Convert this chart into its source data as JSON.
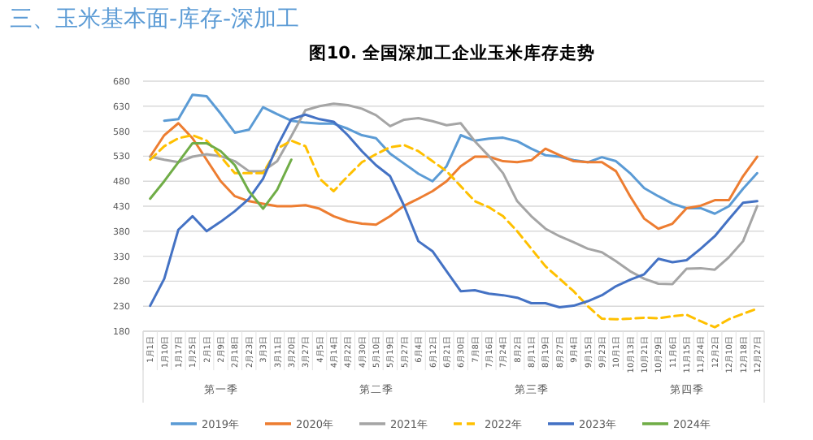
{
  "chart_data": {
    "type": "line",
    "title": "图10. 全国深加工企业玉米库存走势",
    "annotations": [
      "三、玉米基本面-库存-深加工",
      "第一季",
      "第二季",
      "第三季",
      "第四季"
    ],
    "categories": [
      "1月1日",
      "1月10日",
      "1月17日",
      "1月25日",
      "2月1日",
      "2月9日",
      "2月18日",
      "2月23日",
      "3月3日",
      "3月11日",
      "3月20日",
      "3月27日",
      "4月5日",
      "4月14日",
      "4月22日",
      "4月30日",
      "5月10日",
      "5月19日",
      "5月27日",
      "6月4日",
      "6月12日",
      "6月21日",
      "6月30日",
      "7月8日",
      "7月16日",
      "7月24日",
      "8月2日",
      "8月11日",
      "8月19日",
      "8月27日",
      "9月4日",
      "9月15日",
      "9月23日",
      "10月1日",
      "10月13日",
      "10月21日",
      "10月29日",
      "11月6日",
      "11月15日",
      "11月24日",
      "12月2日",
      "12月10日",
      "12月18日",
      "12月27日"
    ],
    "series": [
      {
        "name": "2019年",
        "color": "#5b9bd5",
        "values": [
          null,
          601,
          604,
          653,
          650,
          615,
          577,
          583,
          628,
          614,
          601,
          597,
          595,
          595,
          585,
          572,
          566,
          535,
          515,
          495,
          480,
          510,
          572,
          561,
          565,
          567,
          560,
          545,
          532,
          529,
          522,
          518,
          528,
          520,
          496,
          466,
          450,
          435,
          426,
          426,
          415,
          430,
          465,
          496
        ]
      },
      {
        "name": "2020年",
        "color": "#ed7d31",
        "values": [
          529,
          572,
          596,
          566,
          523,
          480,
          450,
          440,
          435,
          430,
          430,
          432,
          425,
          410,
          400,
          395,
          393,
          410,
          431,
          445,
          460,
          480,
          510,
          529,
          529,
          520,
          518,
          522,
          545,
          532,
          520,
          518,
          518,
          500,
          450,
          405,
          385,
          395,
          426,
          431,
          442,
          442,
          490,
          529
        ]
      },
      {
        "name": "2021年",
        "color": "#a5a5a5",
        "values": [
          529,
          523,
          518,
          529,
          534,
          530,
          520,
          500,
          500,
          520,
          570,
          622,
          630,
          635,
          632,
          625,
          612,
          590,
          603,
          606,
          600,
          592,
          596,
          560,
          530,
          496,
          440,
          410,
          385,
          370,
          358,
          345,
          338,
          320,
          300,
          285,
          275,
          274,
          305,
          306,
          303,
          328,
          360,
          430
        ]
      },
      {
        "name": "2022年",
        "color": "#ffc000",
        "line_style": "dashed",
        "values": [
          523,
          550,
          566,
          572,
          561,
          529,
          496,
          496,
          496,
          545,
          561,
          550,
          485,
          460,
          490,
          518,
          534,
          548,
          552,
          540,
          520,
          500,
          470,
          440,
          428,
          410,
          380,
          345,
          310,
          285,
          260,
          230,
          205,
          204,
          205,
          207,
          206,
          210,
          213,
          200,
          188,
          204,
          215,
          225
        ]
      },
      {
        "name": "2023年",
        "color": "#4472c4",
        "values": [
          231,
          285,
          383,
          410,
          380,
          399,
          420,
          445,
          485,
          550,
          604,
          613,
          604,
          599,
          572,
          540,
          512,
          490,
          430,
          360,
          340,
          300,
          260,
          262,
          255,
          252,
          247,
          236,
          236,
          228,
          231,
          240,
          252,
          270,
          283,
          294,
          325,
          318,
          322,
          345,
          370,
          404,
          437,
          440
        ]
      },
      {
        "name": "2024年",
        "color": "#70ad47",
        "values": [
          445,
          480,
          518,
          556,
          556,
          540,
          512,
          460,
          425,
          463,
          523,
          null,
          null,
          null,
          null,
          null,
          null,
          null,
          null,
          null,
          null,
          null,
          null,
          null,
          null,
          null,
          null,
          null,
          null,
          null,
          null,
          null,
          null,
          null,
          null,
          null,
          null,
          null,
          null,
          null,
          null,
          null,
          null,
          null
        ]
      }
    ],
    "ylim": [
      180,
      680
    ],
    "yticks": [
      180,
      230,
      280,
      330,
      380,
      430,
      480,
      530,
      580,
      630,
      680
    ],
    "grid": "y",
    "legend": "bottom",
    "marker": "none",
    "line_style": "solid"
  }
}
